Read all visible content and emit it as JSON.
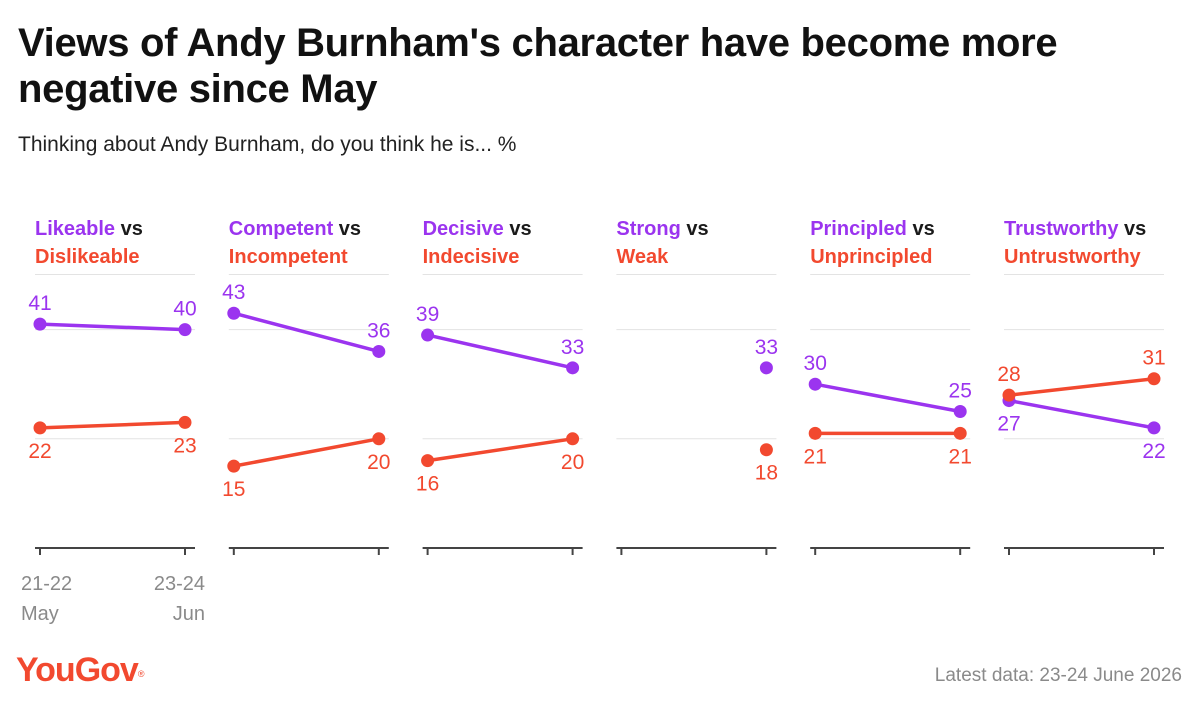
{
  "title": "Views of Andy Burnham's character have become more negative since May",
  "subtitle": "Thinking about Andy Burnham, do you think he is... %",
  "logo": "YouGov",
  "source": "Latest data: 23-24 June 2026",
  "colors": {
    "positive": "#9b34ef",
    "negative": "#f2492f",
    "axis": "#444444",
    "grid": "#e3e3e3",
    "xlabel": "#8a8a8a"
  },
  "chart_data": {
    "type": "line",
    "x": [
      "21-22 May",
      "23-24 Jun"
    ],
    "x_tick_labels": [
      [
        "21-22",
        "May"
      ],
      [
        "23-24",
        "Jun"
      ]
    ],
    "ylim": [
      0,
      50
    ],
    "panels": [
      {
        "positive_label": "Likeable",
        "connector": "vs",
        "negative_label": "Dislikeable",
        "positive": [
          41,
          40
        ],
        "negative": [
          22,
          23
        ]
      },
      {
        "positive_label": "Competent",
        "connector": "vs",
        "negative_label": "Incompetent",
        "positive": [
          43,
          36
        ],
        "negative": [
          15,
          20
        ]
      },
      {
        "positive_label": "Decisive",
        "connector": "vs",
        "negative_label": "Indecisive",
        "positive": [
          39,
          33
        ],
        "negative": [
          16,
          20
        ]
      },
      {
        "positive_label": "Strong",
        "connector": "vs",
        "negative_label": "Weak",
        "positive": [
          null,
          33
        ],
        "negative": [
          null,
          18
        ]
      },
      {
        "positive_label": "Principled",
        "connector": "vs",
        "negative_label": "Unprincipled",
        "positive": [
          30,
          25
        ],
        "negative": [
          21,
          21
        ]
      },
      {
        "positive_label": "Trustworthy",
        "connector": "vs",
        "negative_label": "Untrustworthy",
        "positive": [
          27,
          22
        ],
        "negative": [
          28,
          31
        ]
      }
    ]
  }
}
